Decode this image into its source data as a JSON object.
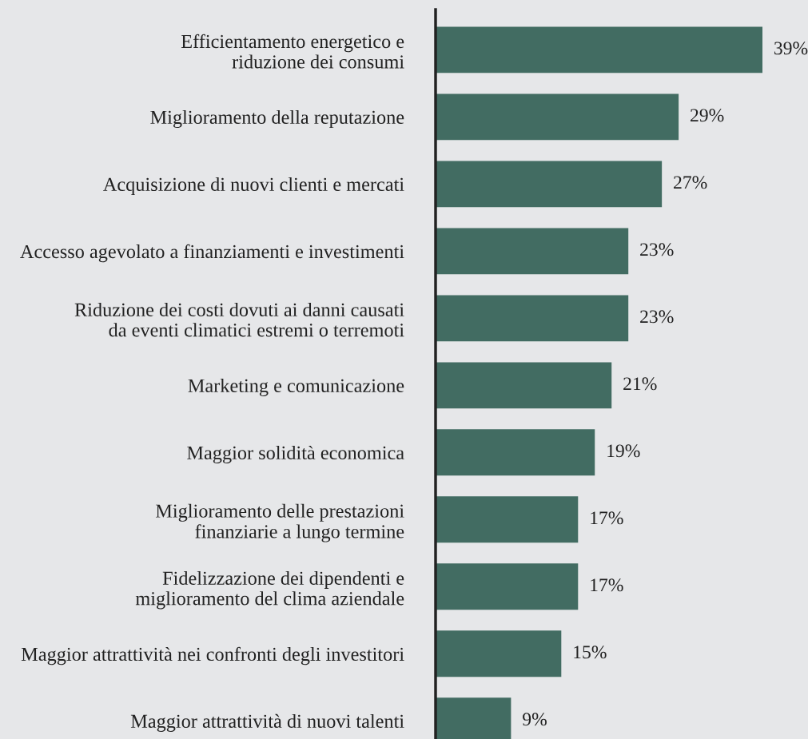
{
  "chart_data": {
    "type": "bar",
    "orientation": "horizontal",
    "tick_labels": "y",
    "categories": [
      "Efficientamento energetico e\nriduzione dei consumi",
      "Miglioramento della reputazione",
      "Acquisizione di nuovi clienti e mercati",
      "Accesso agevolato a finanziamenti e investimenti",
      "Riduzione dei costi dovuti ai danni causati\nda eventi climatici estremi o terremoti",
      "Marketing e comunicazione",
      "Maggior solidità economica",
      "Miglioramento delle prestazioni\nfinanziarie a lungo termine",
      "Fidelizzazione dei dipendenti e\nmiglioramento del clima aziendale",
      "Maggior attrattività nei confronti degli investitori",
      "Maggior attrattività di nuovi talenti"
    ],
    "values": [
      39,
      29,
      27,
      23,
      23,
      21,
      19,
      17,
      17,
      15,
      9
    ],
    "value_labels": [
      "39%",
      "29%",
      "27%",
      "23%",
      "23%",
      "21%",
      "19%",
      "17%",
      "17%",
      "15%",
      "9%"
    ],
    "color": "#426c62",
    "grid": false,
    "legend": false
  }
}
